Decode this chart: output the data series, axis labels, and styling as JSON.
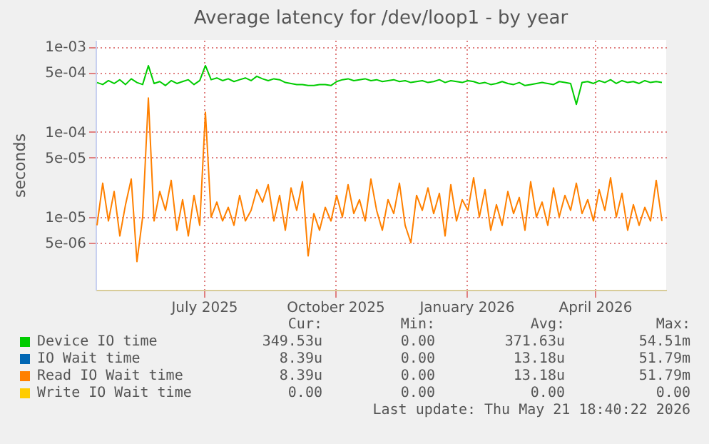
{
  "chart_data": {
    "type": "line",
    "title": "Average latency for /dev/loop1 - by year",
    "ylabel": "seconds",
    "log": true,
    "grid": true,
    "legend": "bottom",
    "ylim": [
      1.4e-06,
      0.0012
    ],
    "yticks": [
      {
        "value": 0.001,
        "label": "1e-03"
      },
      {
        "value": 0.0005,
        "label": "5e-04"
      },
      {
        "value": 0.0001,
        "label": "1e-04"
      },
      {
        "value": 5e-05,
        "label": "5e-05"
      },
      {
        "value": 1e-05,
        "label": "1e-05"
      },
      {
        "value": 5e-06,
        "label": "5e-06"
      }
    ],
    "xlim": [
      "2025-04-16",
      "2026-05-21"
    ],
    "xticks": [
      {
        "value": "2025-07-01",
        "label": "July 2025"
      },
      {
        "value": "2025-10-01",
        "label": "October 2025"
      },
      {
        "value": "2026-01-01",
        "label": "January 2026"
      },
      {
        "value": "2026-04-01",
        "label": "April 2026"
      }
    ],
    "x": [
      "2025-04-17",
      "2025-04-21",
      "2025-04-25",
      "2025-04-29",
      "2025-05-03",
      "2025-05-07",
      "2025-05-11",
      "2025-05-15",
      "2025-05-19",
      "2025-05-23",
      "2025-05-27",
      "2025-05-31",
      "2025-06-04",
      "2025-06-08",
      "2025-06-12",
      "2025-06-16",
      "2025-06-20",
      "2025-06-24",
      "2025-06-28",
      "2025-07-02",
      "2025-07-06",
      "2025-07-10",
      "2025-07-14",
      "2025-07-18",
      "2025-07-22",
      "2025-07-26",
      "2025-07-30",
      "2025-08-03",
      "2025-08-07",
      "2025-08-11",
      "2025-08-15",
      "2025-08-19",
      "2025-08-23",
      "2025-08-27",
      "2025-08-31",
      "2025-09-04",
      "2025-09-08",
      "2025-09-12",
      "2025-09-16",
      "2025-09-20",
      "2025-09-24",
      "2025-09-28",
      "2025-10-02",
      "2025-10-06",
      "2025-10-10",
      "2025-10-14",
      "2025-10-18",
      "2025-10-22",
      "2025-10-26",
      "2025-10-30",
      "2025-11-03",
      "2025-11-07",
      "2025-11-11",
      "2025-11-15",
      "2025-11-19",
      "2025-11-23",
      "2025-11-27",
      "2025-12-01",
      "2025-12-05",
      "2025-12-09",
      "2025-12-13",
      "2025-12-17",
      "2025-12-21",
      "2025-12-25",
      "2025-12-29",
      "2026-01-02",
      "2026-01-06",
      "2026-01-10",
      "2026-01-14",
      "2026-01-18",
      "2026-01-22",
      "2026-01-26",
      "2026-01-30",
      "2026-02-03",
      "2026-02-07",
      "2026-02-11",
      "2026-02-15",
      "2026-02-19",
      "2026-02-23",
      "2026-02-27",
      "2026-03-03",
      "2026-03-07",
      "2026-03-11",
      "2026-03-15",
      "2026-03-19",
      "2026-03-23",
      "2026-03-27",
      "2026-03-31",
      "2026-04-04",
      "2026-04-08",
      "2026-04-12",
      "2026-04-16",
      "2026-04-20",
      "2026-04-24",
      "2026-04-28",
      "2026-05-02",
      "2026-05-06",
      "2026-05-10",
      "2026-05-14",
      "2026-05-18"
    ],
    "series": [
      {
        "name": "Device IO time",
        "color": "#00cc00",
        "values": [
          0.00038,
          0.00036,
          0.0004,
          0.00037,
          0.00041,
          0.00036,
          0.00042,
          0.00038,
          0.00036,
          0.0006,
          0.00037,
          0.00039,
          0.00035,
          0.0004,
          0.00037,
          0.00039,
          0.00041,
          0.00036,
          0.0004,
          0.0006,
          0.00041,
          0.00043,
          0.0004,
          0.00042,
          0.00039,
          0.00041,
          0.00043,
          0.0004,
          0.00045,
          0.00042,
          0.0004,
          0.00042,
          0.00041,
          0.00038,
          0.00037,
          0.00036,
          0.00036,
          0.00035,
          0.00035,
          0.00036,
          0.00036,
          0.00035,
          0.00039,
          0.00041,
          0.00042,
          0.0004,
          0.00041,
          0.00042,
          0.0004,
          0.00041,
          0.00039,
          0.0004,
          0.00041,
          0.00039,
          0.0004,
          0.00038,
          0.00039,
          0.0004,
          0.00038,
          0.00039,
          0.00041,
          0.00038,
          0.0004,
          0.00039,
          0.00038,
          0.0004,
          0.00039,
          0.00037,
          0.00038,
          0.00036,
          0.00037,
          0.00039,
          0.00037,
          0.00036,
          0.00038,
          0.00035,
          0.00036,
          0.00037,
          0.00038,
          0.00037,
          0.00036,
          0.00039,
          0.00038,
          0.00037,
          0.00021,
          0.00038,
          0.00039,
          0.00037,
          0.0004,
          0.00038,
          0.00041,
          0.00037,
          0.0004,
          0.00038,
          0.00039,
          0.00037,
          0.0004,
          0.00038,
          0.00039,
          0.00038
        ]
      },
      {
        "name": "IO Wait time",
        "color": "#0066b3",
        "values": [
          null,
          null,
          null,
          null,
          null,
          null,
          null,
          null,
          null,
          null,
          null,
          null,
          null,
          null,
          null,
          null,
          null,
          null,
          null,
          null,
          null,
          null,
          null,
          null,
          null,
          null,
          null,
          null,
          null,
          null,
          null,
          null,
          null,
          null,
          null,
          null,
          null,
          null,
          null,
          null,
          null,
          null,
          null,
          null,
          null,
          null,
          null,
          null,
          null,
          null,
          null,
          null,
          null,
          null,
          null,
          null,
          null,
          null,
          null,
          null,
          null,
          null,
          null,
          null,
          null,
          null,
          null,
          null,
          null,
          null,
          null,
          null,
          null,
          null,
          null,
          null,
          null,
          null,
          null,
          null,
          null,
          null,
          null,
          null,
          null,
          null,
          null,
          null,
          null,
          null,
          null,
          null,
          null,
          null,
          null,
          null,
          null,
          null,
          null,
          null
        ]
      },
      {
        "name": "Read IO Wait time",
        "color": "#ff8000",
        "values": [
          8e-06,
          2.5e-05,
          9e-06,
          2e-05,
          6e-06,
          1.4e-05,
          2.8e-05,
          3e-06,
          1e-05,
          0.00025,
          9e-06,
          2e-05,
          1.2e-05,
          2.7e-05,
          7e-06,
          1.6e-05,
          6e-06,
          1.8e-05,
          8e-06,
          0.00017,
          1e-05,
          1.5e-05,
          9e-06,
          1.3e-05,
          8e-06,
          1.8e-05,
          9e-06,
          1.2e-05,
          2.1e-05,
          1.5e-05,
          2.4e-05,
          9e-06,
          1.8e-05,
          7e-06,
          2.2e-05,
          1.2e-05,
          2.6e-05,
          3.5e-06,
          1.1e-05,
          7e-06,
          1.3e-05,
          9e-06,
          1.8e-05,
          1e-05,
          2.4e-05,
          1.1e-05,
          1.6e-05,
          9e-06,
          2.8e-05,
          1.2e-05,
          7e-06,
          1.6e-05,
          1.1e-05,
          2.5e-05,
          8e-06,
          5e-06,
          1.8e-05,
          1.2e-05,
          2.2e-05,
          1.1e-05,
          1.9e-05,
          6e-06,
          2.4e-05,
          9e-06,
          1.6e-05,
          1.2e-05,
          2.9e-05,
          1e-05,
          2.1e-05,
          7e-06,
          1.4e-05,
          8e-06,
          2e-05,
          1.1e-05,
          1.7e-05,
          7e-06,
          2.6e-05,
          1e-05,
          1.5e-05,
          8e-06,
          2.2e-05,
          1e-05,
          1.8e-05,
          1.2e-05,
          2.5e-05,
          1.1e-05,
          1.6e-05,
          9e-06,
          2.1e-05,
          1.2e-05,
          2.9e-05,
          1e-05,
          1.9e-05,
          7e-06,
          1.4e-05,
          8e-06,
          1.3e-05,
          9e-06,
          2.7e-05,
          9e-06
        ]
      },
      {
        "name": "Write IO Wait time",
        "color": "#ffcc00",
        "values": [
          null,
          null,
          null,
          null,
          null,
          null,
          null,
          null,
          null,
          null,
          null,
          null,
          null,
          null,
          null,
          null,
          null,
          null,
          null,
          null,
          null,
          null,
          null,
          null,
          null,
          null,
          null,
          null,
          null,
          null,
          null,
          null,
          null,
          null,
          null,
          null,
          null,
          null,
          null,
          null,
          null,
          null,
          null,
          null,
          null,
          null,
          null,
          null,
          null,
          null,
          null,
          null,
          null,
          null,
          null,
          null,
          null,
          null,
          null,
          null,
          null,
          null,
          null,
          null,
          null,
          null,
          null,
          null,
          null,
          null,
          null,
          null,
          null,
          null,
          null,
          null,
          null,
          null,
          null,
          null,
          null,
          null,
          null,
          null,
          null,
          null,
          null,
          null,
          null,
          null,
          null,
          null,
          null,
          null,
          null,
          null,
          null,
          null,
          null,
          null
        ]
      }
    ],
    "annotations": [
      "Cur:",
      "Min:",
      "Avg:",
      "Max:",
      "349.53u",
      "0.00",
      "371.63u",
      "54.51m",
      "8.39u",
      "0.00",
      "13.18u",
      "51.79m",
      "8.39u",
      "0.00",
      "13.18u",
      "51.79m",
      "0.00",
      "0.00",
      "0.00",
      "0.00",
      "Last update: Thu May 21 18:40:22 2026"
    ]
  }
}
